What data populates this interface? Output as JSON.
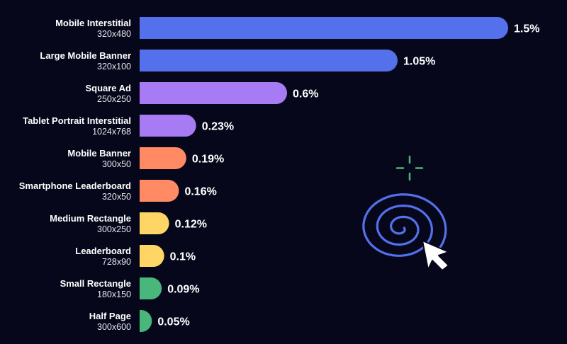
{
  "chart_data": {
    "type": "bar",
    "orientation": "horizontal",
    "categories": [
      {
        "name": "Mobile Interstitial",
        "size": "320x480"
      },
      {
        "name": "Large Mobile Banner",
        "size": "320x100"
      },
      {
        "name": "Square Ad",
        "size": "250x250"
      },
      {
        "name": "Tablet Portrait Interstitial",
        "size": "1024x768"
      },
      {
        "name": "Mobile Banner",
        "size": "300x50"
      },
      {
        "name": "Smartphone Leaderboard",
        "size": "320x50"
      },
      {
        "name": "Medium Rectangle",
        "size": "300x250"
      },
      {
        "name": "Leaderboard",
        "size": "728x90"
      },
      {
        "name": "Small Rectangle",
        "size": "180x150"
      },
      {
        "name": "Half Page",
        "size": "300x600"
      }
    ],
    "values": [
      1.5,
      1.05,
      0.6,
      0.23,
      0.19,
      0.16,
      0.12,
      0.1,
      0.09,
      0.05
    ],
    "value_labels": [
      "1.5%",
      "1.05%",
      "0.6%",
      "0.23%",
      "0.19%",
      "0.16%",
      "0.12%",
      "0.1%",
      "0.09%",
      "0.05%"
    ],
    "bar_colors": [
      "#5470ea",
      "#5470ea",
      "#a77bf3",
      "#a77bf3",
      "#ff8a63",
      "#ff8a63",
      "#ffd666",
      "#ffd666",
      "#49b67a",
      "#49b67a"
    ],
    "title": "",
    "xlabel": "",
    "ylabel": "",
    "xlim": [
      0,
      1.5
    ],
    "grid": false,
    "legend": "none"
  },
  "colors": {
    "background": "#07071c",
    "decoration_accent": "#49b67a",
    "decoration_spiral": "#5470ea",
    "cursor": "#ffffff"
  },
  "decoration": {
    "icons": [
      "crosshair-icon",
      "spiral-icon",
      "cursor-arrow-icon"
    ]
  }
}
